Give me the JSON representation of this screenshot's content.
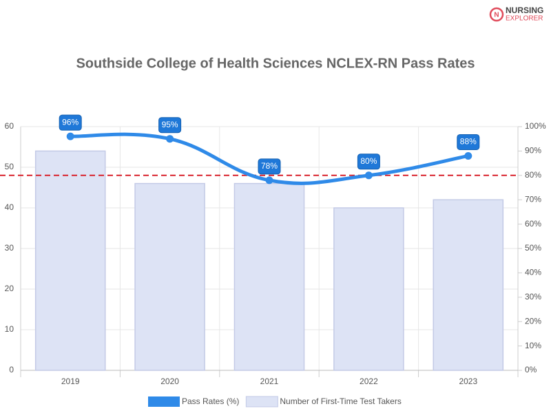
{
  "logo": {
    "line1": "NURSING",
    "line2": "EXPLORER"
  },
  "chart_data": {
    "type": "bar-line",
    "title": "Southside College of Health Sciences NCLEX-RN Pass Rates",
    "categories": [
      "2019",
      "2020",
      "2021",
      "2022",
      "2023"
    ],
    "series": [
      {
        "name": "Number of First-Time Test Takers",
        "type": "bar",
        "color": "#dde3f5",
        "values": [
          54,
          46,
          46,
          40,
          42
        ]
      },
      {
        "name": "Pass Rates (%)",
        "type": "line",
        "axis": "y2",
        "color": "#2f8ae8",
        "values": [
          96,
          95,
          78,
          80,
          88
        ],
        "value_labels": [
          "96%",
          "95%",
          "78%",
          "80%",
          "88%"
        ]
      }
    ],
    "ylim": [
      0,
      60
    ],
    "yticks": [
      0,
      10,
      20,
      30,
      40,
      50,
      60
    ],
    "y2lim": [
      0,
      100
    ],
    "y2ticks": [
      {
        "value": 0,
        "label": "0%"
      },
      {
        "value": 10,
        "label": "10%"
      },
      {
        "value": 20,
        "label": "20%"
      },
      {
        "value": 30,
        "label": "30%"
      },
      {
        "value": 40,
        "label": "40%"
      },
      {
        "value": 50,
        "label": "50%"
      },
      {
        "value": 60,
        "label": "60%"
      },
      {
        "value": 70,
        "label": "70%"
      },
      {
        "value": 80,
        "label": "80%"
      },
      {
        "value": 90,
        "label": "90%"
      },
      {
        "value": 100,
        "label": "100%"
      }
    ],
    "reference_line": {
      "value": 80,
      "axis": "y2",
      "color": "#d9232d"
    },
    "grid": true
  }
}
